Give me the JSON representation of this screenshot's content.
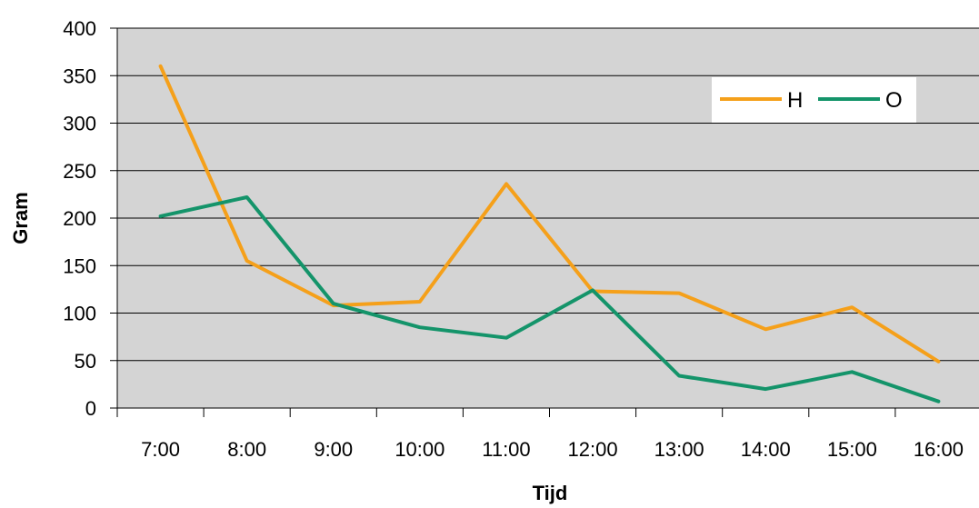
{
  "chart_data": {
    "type": "line",
    "title": "",
    "xlabel": "Tijd",
    "ylabel": "Gram",
    "categories": [
      "7:00",
      "8:00",
      "9:00",
      "10:00",
      "11:00",
      "12:00",
      "13:00",
      "14:00",
      "15:00",
      "16:00"
    ],
    "ylim": [
      0,
      400
    ],
    "yticks": [
      "0",
      "50",
      "100",
      "150",
      "200",
      "250",
      "300",
      "350",
      "400"
    ],
    "grid": true,
    "legend_position": "top-right",
    "plot_background": "#d4d4d4",
    "series": [
      {
        "name": "H",
        "color": "#f5a01a",
        "values": [
          360,
          155,
          108,
          112,
          236,
          123,
          121,
          83,
          106,
          49
        ]
      },
      {
        "name": "O",
        "color": "#14946a",
        "values": [
          202,
          222,
          110,
          85,
          74,
          124,
          34,
          20,
          38,
          7
        ]
      }
    ]
  }
}
